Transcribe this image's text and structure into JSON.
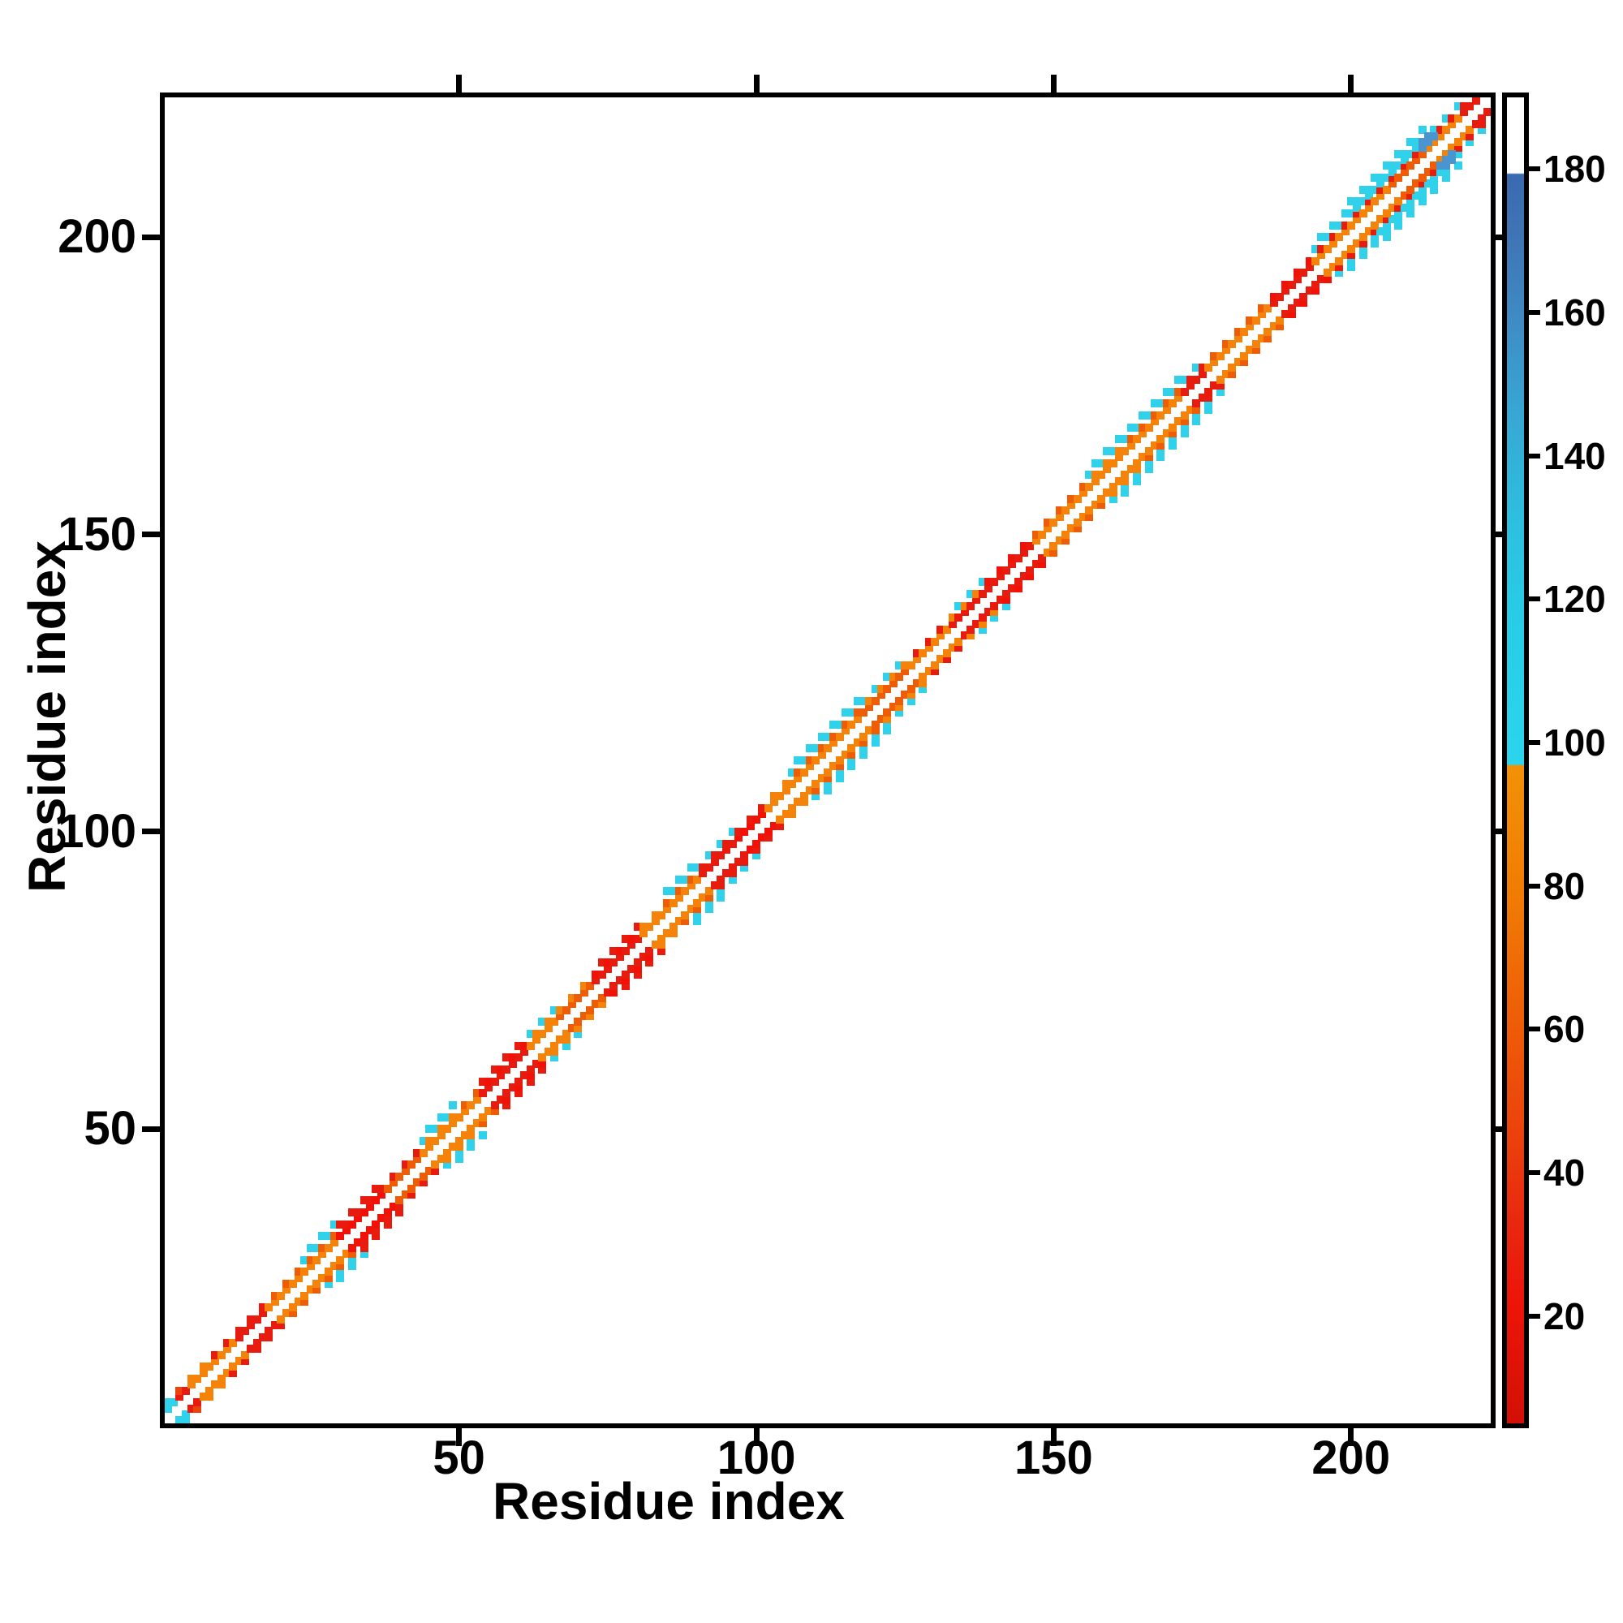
{
  "chart_data": {
    "type": "heatmap",
    "subtype": "protein-residue-contact-map",
    "title": "",
    "xlabel": "Residue index",
    "ylabel": "Residue index",
    "xlim": [
      0.5,
      223.5
    ],
    "ylim": [
      0.5,
      223.5
    ],
    "x_ticks": [
      50,
      100,
      150,
      200
    ],
    "y_ticks": [
      50,
      100,
      150,
      200
    ],
    "grid": false,
    "legend_position": "none",
    "background_color": "#ffffff",
    "frame_color": "#000000",
    "diagonal": "white (self/near-diagonal contacts excluded)",
    "symmetry": "symmetric about the main diagonal",
    "palette": {
      "orange": "#f5830a",
      "deepOrange": "#ee5d06",
      "orangeRed": "#ec420b",
      "red": "#e81c0e",
      "brightRed": "#f21107",
      "cyan": "#2fd2ea",
      "blue": "#4a94d0",
      "white": "#ffffff"
    },
    "colorbar": {
      "vmin": 5,
      "vmax": 190,
      "ticks": [
        20,
        40,
        60,
        80,
        100,
        120,
        140,
        160,
        180
      ],
      "gradient_stops": [
        {
          "pos": 0.0,
          "color": "#d31006"
        },
        {
          "pos": 0.09,
          "color": "#ed1409"
        },
        {
          "pos": 0.15,
          "color": "#e92610"
        },
        {
          "pos": 0.21,
          "color": "#eb3f0c"
        },
        {
          "pos": 0.3,
          "color": "#ee5c07"
        },
        {
          "pos": 0.4,
          "color": "#f17c04"
        },
        {
          "pos": 0.496,
          "color": "#f39106"
        },
        {
          "pos": 0.497,
          "color": "#2bd5ed"
        },
        {
          "pos": 0.6,
          "color": "#28cde7"
        },
        {
          "pos": 0.68,
          "color": "#2dbfe0"
        },
        {
          "pos": 0.76,
          "color": "#37a8d3"
        },
        {
          "pos": 0.83,
          "color": "#3f8cc4"
        },
        {
          "pos": 0.89,
          "color": "#3f76b6"
        },
        {
          "pos": 0.942,
          "color": "#3a6ab0"
        },
        {
          "pos": 0.943,
          "color": "#ffffff"
        },
        {
          "pos": 1.0,
          "color": "#ffffff"
        }
      ]
    },
    "band_segments": [
      {
        "s": 1,
        "e": 3,
        "c2": "cyan",
        "c3": "cyan"
      },
      {
        "s": 3,
        "e": 5,
        "c2": "red",
        "c3": "orangeRed"
      },
      {
        "s": 5,
        "e": 9,
        "c2": "orange",
        "c3": "orange"
      },
      {
        "s": 9,
        "e": 13,
        "c2": "orange",
        "c3": "red"
      },
      {
        "s": 13,
        "e": 18,
        "c2": "red",
        "c3": "red"
      },
      {
        "s": 18,
        "e": 24,
        "c2": "orange",
        "c3": "deepOrange"
      },
      {
        "s": 24,
        "e": 30,
        "c2": "orange",
        "c3": "deepOrange",
        "outer": "cyan",
        "w": 5
      },
      {
        "s": 30,
        "e": 38,
        "c2": "brightRed",
        "c3": "red",
        "outer": "red",
        "w": 4
      },
      {
        "s": 38,
        "e": 44,
        "c2": "deepOrange",
        "c3": "red"
      },
      {
        "s": 44,
        "e": 50,
        "c2": "orange",
        "c3": "orange",
        "outer": "cyan",
        "w": 5
      },
      {
        "s": 50,
        "e": 54,
        "c2": "orange",
        "c3": "deepOrange"
      },
      {
        "s": 54,
        "e": 62,
        "c2": "red",
        "c3": "brightRed",
        "outer": "red",
        "w": 4
      },
      {
        "s": 62,
        "e": 67,
        "c2": "orange",
        "c3": "orange",
        "outer": "cyan",
        "w": 4
      },
      {
        "s": 67,
        "e": 73,
        "c2": "deepOrange",
        "c3": "orange"
      },
      {
        "s": 73,
        "e": 81,
        "c2": "red",
        "c3": "brightRed",
        "outer": "red",
        "w": 4
      },
      {
        "s": 81,
        "e": 85,
        "c2": "orange",
        "c3": "orange"
      },
      {
        "s": 85,
        "e": 91,
        "c2": "orange",
        "c3": "deepOrange",
        "outer": "cyan",
        "w": 5
      },
      {
        "s": 91,
        "e": 97,
        "c2": "red",
        "c3": "red",
        "outer": "cyan",
        "w": 4
      },
      {
        "s": 97,
        "e": 102,
        "c2": "brightRed",
        "c3": "red"
      },
      {
        "s": 102,
        "e": 106,
        "c2": "orange",
        "c3": "orange"
      },
      {
        "s": 106,
        "e": 118,
        "c2": "orange",
        "c3": "deepOrange",
        "outer": "cyan",
        "w": 5
      },
      {
        "s": 118,
        "e": 126,
        "c2": "deepOrange",
        "c3": "orange",
        "outer": "cyan",
        "w": 4
      },
      {
        "s": 126,
        "e": 133,
        "c2": "orange",
        "c3": "red"
      },
      {
        "s": 133,
        "e": 139,
        "c2": "red",
        "c3": "orange",
        "outer": "cyan",
        "w": 4
      },
      {
        "s": 139,
        "e": 147,
        "c2": "red",
        "c3": "brightRed"
      },
      {
        "s": 147,
        "e": 156,
        "c2": "orange",
        "c3": "deepOrange"
      },
      {
        "s": 156,
        "e": 163,
        "c2": "orange",
        "c3": "orange",
        "outer": "cyan",
        "w": 5
      },
      {
        "s": 163,
        "e": 172,
        "c2": "orange",
        "c3": "deepOrange",
        "outer": "cyan",
        "w": 5
      },
      {
        "s": 172,
        "e": 176,
        "c2": "red",
        "c3": "red",
        "outer": "cyan",
        "w": 4
      },
      {
        "s": 176,
        "e": 187,
        "c2": "orange",
        "c3": "deepOrange"
      },
      {
        "s": 187,
        "e": 194,
        "c2": "red",
        "c3": "brightRed"
      },
      {
        "s": 194,
        "e": 200,
        "c2": "orange",
        "c3": "red",
        "outer": "cyan",
        "w": 5
      },
      {
        "s": 200,
        "e": 207,
        "c2": "orange",
        "c3": "red",
        "outer": "cyan",
        "w": 6
      },
      {
        "s": 207,
        "e": 213,
        "c2": "deepOrange",
        "c3": "red",
        "outer": "cyan",
        "w": 6
      },
      {
        "s": 213,
        "e": 219,
        "c2": "orange",
        "c3": "red",
        "outer": "cyan",
        "w": 4
      },
      {
        "s": 219,
        "e": 223,
        "c2": "red",
        "c3": "red"
      }
    ],
    "extra_cells": [
      {
        "i": 212,
        "j": 215,
        "color": "blue"
      },
      {
        "i": 212,
        "j": 216,
        "color": "blue"
      },
      {
        "i": 213,
        "j": 216,
        "color": "blue"
      },
      {
        "i": 213,
        "j": 217,
        "color": "blue"
      },
      {
        "i": 214,
        "j": 217,
        "color": "blue"
      }
    ]
  }
}
